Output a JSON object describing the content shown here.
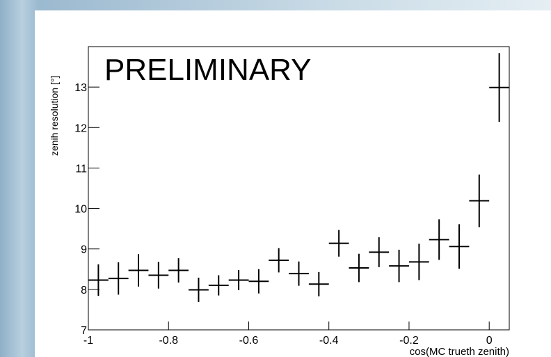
{
  "chart_data": {
    "type": "errorbar",
    "annotation": "PRELIMINARY",
    "x_label": "cos(MC trueth zenith)",
    "y_label": "zenih resolution [°]",
    "x": [
      -0.975,
      -0.925,
      -0.875,
      -0.825,
      -0.775,
      -0.725,
      -0.675,
      -0.625,
      -0.575,
      -0.525,
      -0.475,
      -0.425,
      -0.375,
      -0.325,
      -0.275,
      -0.225,
      -0.175,
      -0.125,
      -0.075,
      -0.025,
      0.025
    ],
    "values": [
      8.23,
      8.27,
      8.47,
      8.35,
      8.47,
      7.99,
      8.1,
      8.23,
      8.2,
      8.72,
      8.39,
      8.13,
      9.14,
      8.53,
      8.92,
      8.58,
      8.68,
      9.23,
      9.06,
      10.19,
      12.99
    ],
    "errors": [
      0.39,
      0.4,
      0.4,
      0.33,
      0.3,
      0.3,
      0.25,
      0.25,
      0.3,
      0.3,
      0.3,
      0.3,
      0.33,
      0.35,
      0.37,
      0.4,
      0.45,
      0.5,
      0.55,
      0.65,
      0.85
    ],
    "color": "#000000",
    "xlim": [
      -1,
      0.05
    ],
    "ylim": [
      7,
      14
    ],
    "xticks": [
      -1,
      -0.8,
      -0.6,
      -0.4,
      -0.2,
      0
    ],
    "yticks": [
      7,
      8,
      9,
      10,
      11,
      12,
      13
    ]
  }
}
